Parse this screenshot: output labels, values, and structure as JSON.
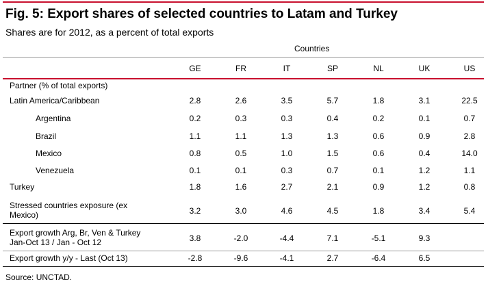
{
  "title": "Fig. 5: Export shares of selected countries to Latam and Turkey",
  "subtitle": "Shares are for 2012, as a percent of total exports",
  "column_group": "Countries",
  "columns": [
    "GE",
    "FR",
    "IT",
    "SP",
    "NL",
    "UK",
    "US"
  ],
  "partner_header": "Partner (% of total exports)",
  "rows": [
    {
      "label": "Latin America/Caribbean",
      "values": [
        "2.8",
        "2.6",
        "3.5",
        "5.7",
        "1.8",
        "3.1",
        "22.5"
      ]
    },
    {
      "label": "Argentina",
      "values": [
        "0.2",
        "0.3",
        "0.3",
        "0.4",
        "0.2",
        "0.1",
        "0.7"
      ]
    },
    {
      "label": "Brazil",
      "values": [
        "1.1",
        "1.1",
        "1.3",
        "1.3",
        "0.6",
        "0.9",
        "2.8"
      ]
    },
    {
      "label": "Mexico",
      "values": [
        "0.8",
        "0.5",
        "1.0",
        "1.5",
        "0.6",
        "0.4",
        "14.0"
      ]
    },
    {
      "label": "Venezuela",
      "values": [
        "0.1",
        "0.1",
        "0.3",
        "0.7",
        "0.1",
        "1.2",
        "1.1"
      ]
    },
    {
      "label": "Turkey",
      "values": [
        "1.8",
        "1.6",
        "2.7",
        "2.1",
        "0.9",
        "1.2",
        "0.8"
      ]
    },
    {
      "label_line1": "Stressed countries exposure (ex",
      "label_line2": "Mexico)",
      "values": [
        "3.2",
        "3.0",
        "4.6",
        "4.5",
        "1.8",
        "3.4",
        "5.4"
      ]
    },
    {
      "label_line1": "Export growth Arg, Br, Ven & Turkey",
      "label_line2": "Jan-Oct 13 / Jan - Oct 12",
      "values": [
        "3.8",
        "-2.0",
        "-4.4",
        "7.1",
        "-5.1",
        "9.3",
        ""
      ]
    },
    {
      "label": "Export growth y/y - Last (Oct 13)",
      "values": [
        "-2.8",
        "-9.6",
        "-4.1",
        "2.7",
        "-6.4",
        "6.5",
        ""
      ]
    }
  ],
  "source": "Source: UNCTAD.",
  "colors": {
    "accent_red": "#c8102e",
    "rule_gray": "#9a9a9a"
  }
}
